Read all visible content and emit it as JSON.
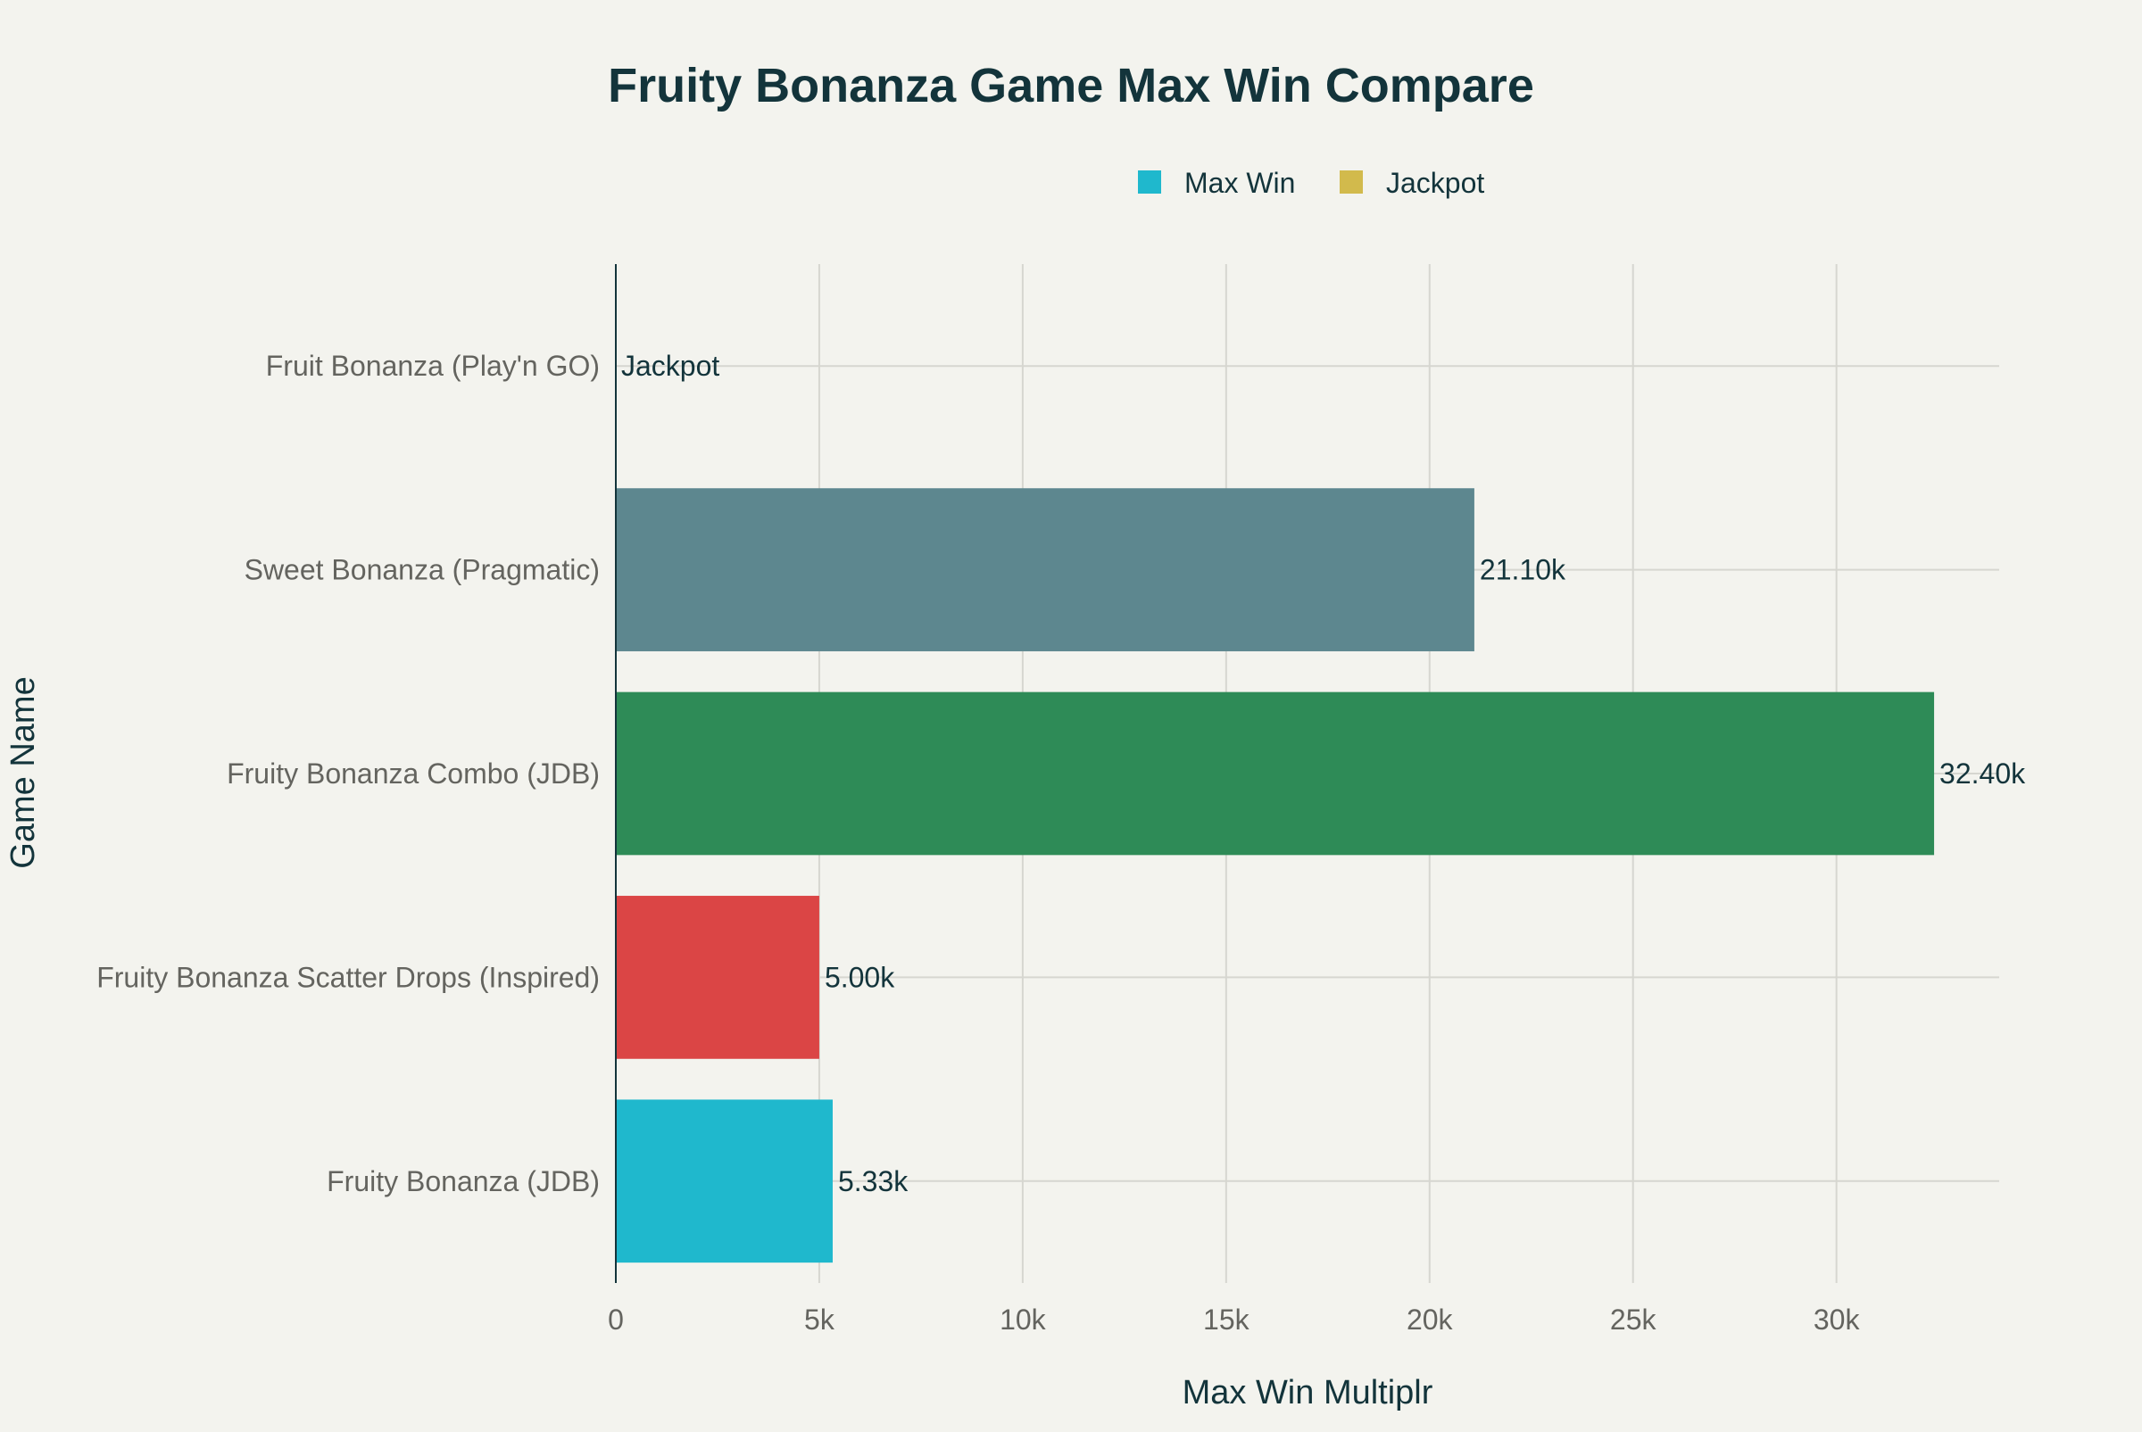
{
  "chart_data": {
    "type": "bar",
    "orientation": "horizontal",
    "title": "Fruity Bonanza Game Max Win Compare",
    "xlabel": "Max Win Multiplr",
    "ylabel": "Game Name",
    "xlim": [
      0,
      34000
    ],
    "x_ticks": [
      0,
      5000,
      10000,
      15000,
      20000,
      25000,
      30000
    ],
    "x_tick_labels": [
      "0",
      "5k",
      "10k",
      "15k",
      "20k",
      "25k",
      "30k"
    ],
    "grid": true,
    "legend_position": "top-right",
    "legend": [
      {
        "label": "Max Win",
        "color": "#1fb8cd"
      },
      {
        "label": "Jackpot",
        "color": "#d2ba4c"
      }
    ],
    "categories": [
      "Fruit Bonanza (Play'n GO)",
      "Sweet Bonanza (Pragmatic)",
      "Fruity Bonanza Combo (JDB)",
      "Fruity Bonanza Scatter Drops (Inspired)",
      "Fruity Bonanza (JDB)"
    ],
    "values": [
      0,
      21100,
      32400,
      5000,
      5330
    ],
    "data_labels": [
      "Jackpot",
      "21.10k",
      "32.40k",
      "5.00k",
      "5.33k"
    ],
    "colors": [
      "#d2ba4c",
      "#5d878f",
      "#2e8b57",
      "#db4545",
      "#1fb8cd"
    ]
  }
}
